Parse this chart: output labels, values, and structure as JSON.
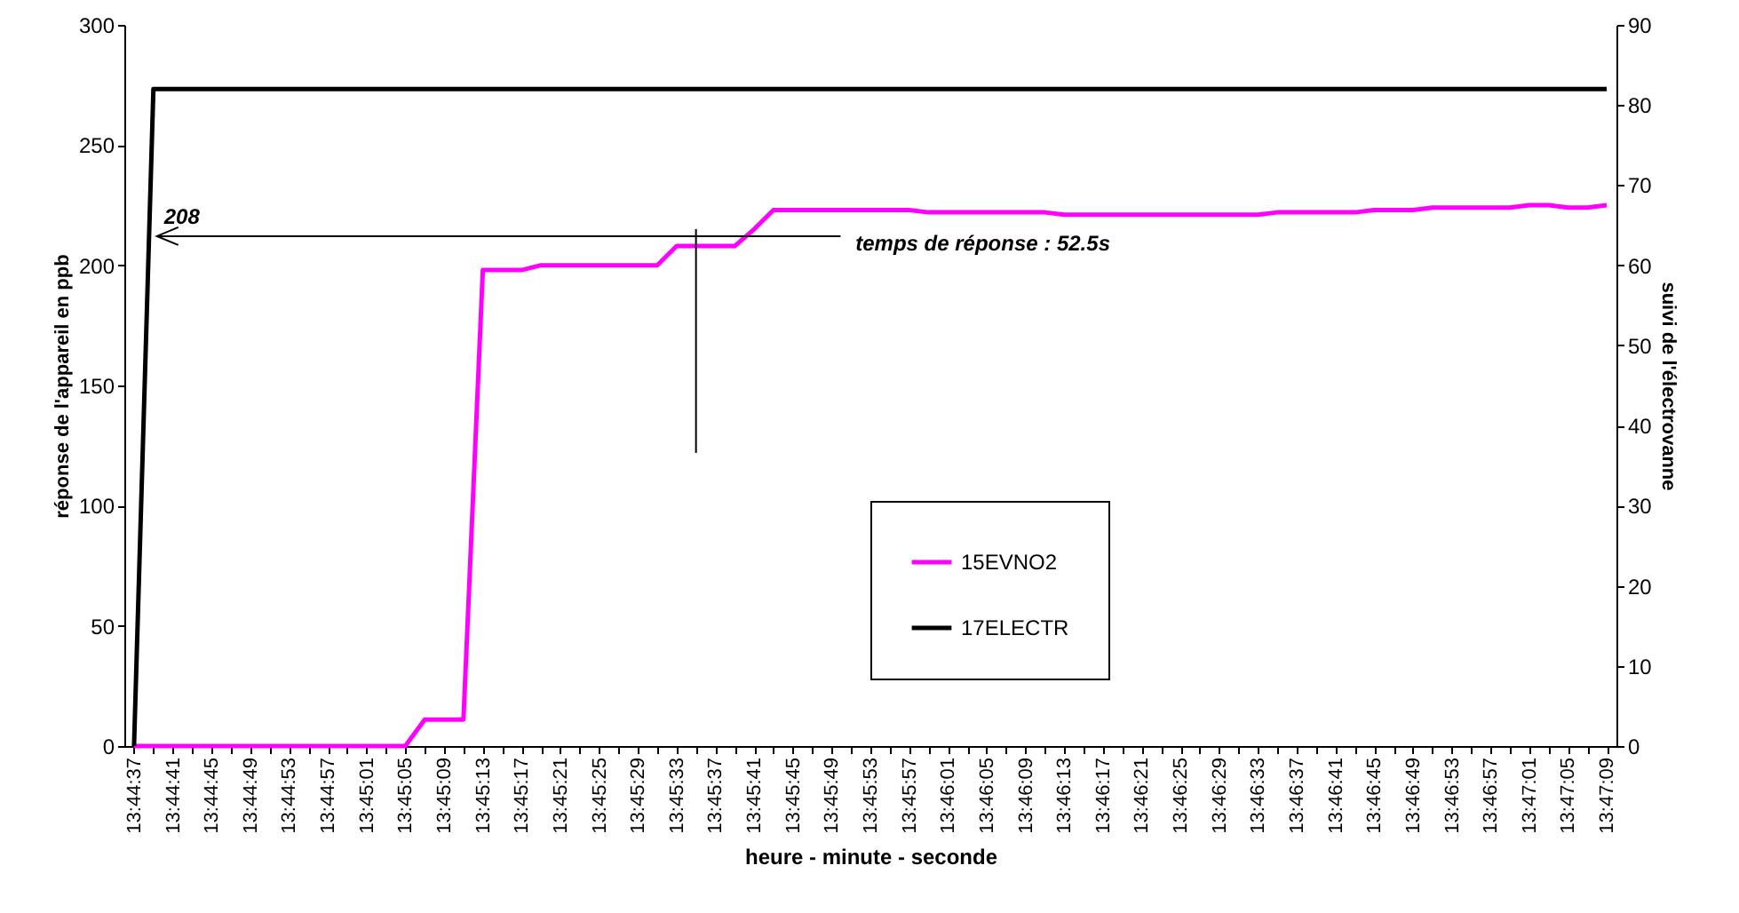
{
  "chart_data": {
    "type": "line",
    "xlabel": "heure - minute - seconde",
    "ylabel": "réponse de l'appareil en ppb",
    "y2label": "suivi de l'électrovanne",
    "categories": [
      "13:44:37",
      null,
      "13:44:41",
      null,
      "13:44:45",
      null,
      "13:44:49",
      null,
      "13:44:53",
      null,
      "13:44:57",
      null,
      "13:45:01",
      null,
      "13:45:05",
      null,
      "13:45:09",
      null,
      "13:45:13",
      null,
      "13:45:17",
      null,
      "13:45:21",
      null,
      "13:45:25",
      null,
      "13:45:29",
      null,
      "13:45:33",
      null,
      "13:45:37",
      null,
      "13:45:41",
      null,
      "13:45:45",
      null,
      "13:45:49",
      null,
      "13:45:53",
      null,
      "13:45:57",
      null,
      "13:46:01",
      null,
      "13:46:05",
      null,
      "13:46:09",
      null,
      "13:46:13",
      null,
      "13:46:17",
      null,
      "13:46:21",
      null,
      "13:46:25",
      null,
      "13:46:29",
      null,
      "13:46:33",
      null,
      "13:46:37",
      null,
      "13:46:41",
      null,
      "13:46:45",
      null,
      "13:46:49",
      null,
      "13:46:53",
      null,
      "13:46:57",
      null,
      "13:47:01",
      null,
      "13:47:05",
      null,
      "13:47:09"
    ],
    "series": [
      {
        "name": "15EVNO2",
        "color": "#ff00ff",
        "values": [
          0,
          0,
          0,
          0,
          0,
          0,
          0,
          0,
          0,
          0,
          0,
          0,
          0,
          0,
          0,
          11,
          11,
          11,
          198,
          198,
          198,
          200,
          200,
          200,
          200,
          200,
          200,
          200,
          208,
          208,
          208,
          208,
          215,
          223,
          223,
          223,
          223,
          223,
          223,
          223,
          223,
          222,
          222,
          222,
          222,
          222,
          222,
          222,
          221,
          221,
          221,
          221,
          221,
          221,
          221,
          221,
          221,
          221,
          221,
          222,
          222,
          222,
          222,
          222,
          223,
          223,
          223,
          224,
          224,
          224,
          224,
          224,
          225,
          225,
          224,
          224,
          225
        ]
      },
      {
        "name": "17ELECTR",
        "color": "#000000",
        "axis": "y2",
        "values": [
          0,
          82,
          82,
          82,
          82,
          82,
          82,
          82,
          82,
          82,
          82,
          82,
          82,
          82,
          82,
          82,
          82,
          82,
          82,
          82,
          82,
          82,
          82,
          82,
          82,
          82,
          82,
          82,
          82,
          82,
          82,
          82,
          82,
          82,
          82,
          82,
          82,
          82,
          82,
          82,
          82,
          82,
          82,
          82,
          82,
          82,
          82,
          82,
          82,
          82,
          82,
          82,
          82,
          82,
          82,
          82,
          82,
          82,
          82,
          82,
          82,
          82,
          82,
          82,
          82,
          82,
          82,
          82,
          82,
          82,
          82,
          82,
          82,
          82,
          82,
          82,
          82
        ]
      }
    ],
    "ylim": [
      0,
      300
    ],
    "yticks": [
      0,
      50,
      100,
      150,
      200,
      250,
      300
    ],
    "y2lim": [
      0,
      90
    ],
    "y2ticks": [
      0,
      10,
      20,
      30,
      40,
      50,
      60,
      70,
      80,
      90
    ],
    "annotations": [
      "208",
      "temps de réponse : 52.5s"
    ],
    "legend": "center"
  }
}
